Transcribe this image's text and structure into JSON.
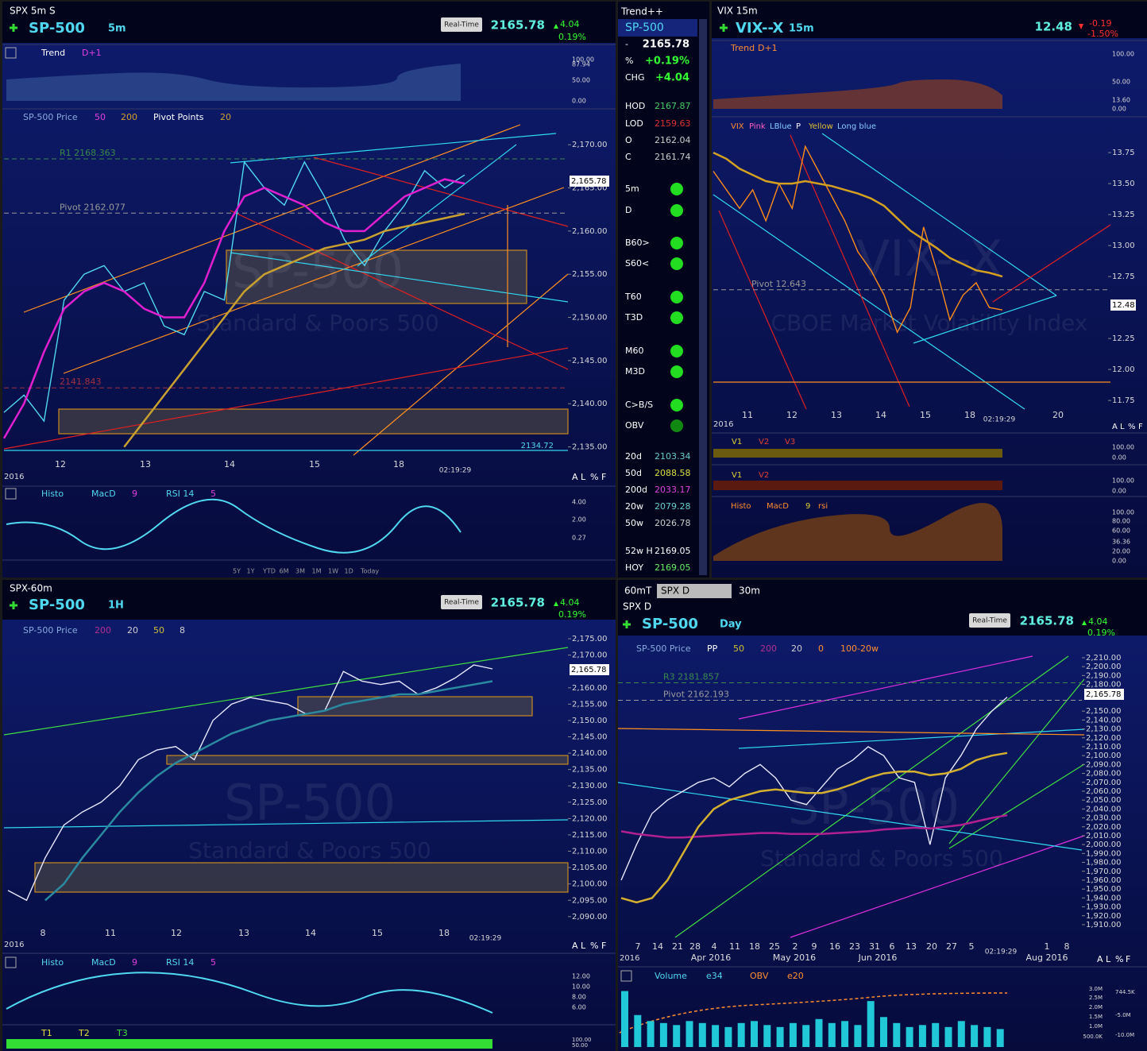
{
  "panels": {
    "tl": {
      "window_title": "SPX 5m S",
      "symbol": "SP-500",
      "interval": "5m",
      "price": "2165.78",
      "change": "4.04",
      "change_pct": "0.19%",
      "change_color": "#33ff33",
      "realtime": "Real-Time",
      "trend_labels": [
        "Trend",
        "D+1"
      ],
      "trend_ticks": [
        "100.00",
        "87.94",
        "50.00",
        "0.00"
      ],
      "overlay_labels": [
        "SP-500 Price",
        "50",
        "200",
        "Pivot Points",
        "20"
      ],
      "levels": [
        {
          "label": "R1 2168.363",
          "value": 2168.363,
          "color": "#3a8a4a"
        },
        {
          "label": "Pivot 2162.077",
          "value": 2162.077,
          "color": "#999999"
        },
        {
          "label": "2141.843",
          "value": 2141.843,
          "color": "#a03040"
        }
      ],
      "watermark": [
        "SP-500",
        "Standard & Poors 500"
      ],
      "last_box": "2,165.78",
      "low_label": "2134.72",
      "ylim": [
        2134.5,
        2172.5
      ],
      "yticks": [
        {
          "value": 2170,
          "label": "2,170.00"
        },
        {
          "value": 2165,
          "label": "2,165.00"
        },
        {
          "value": 2160,
          "label": "2,160.00"
        },
        {
          "value": 2155,
          "label": "2,155.00"
        },
        {
          "value": 2150,
          "label": "2,150.00"
        },
        {
          "value": 2145,
          "label": "2,145.00"
        },
        {
          "value": 2140,
          "label": "2,140.00"
        },
        {
          "value": 2135,
          "label": "2,135.00"
        }
      ],
      "xlabels": [
        "12",
        "13",
        "14",
        "15",
        "18"
      ],
      "time": "02:19:29",
      "year": "2016",
      "scale_opts": [
        "A",
        "L",
        "%",
        "F"
      ],
      "series": [
        {
          "color": "#4fd8f0",
          "values": [
            2139,
            2141,
            2138,
            2152,
            2155,
            2156,
            2153,
            2154,
            2149,
            2148,
            2153,
            2152,
            2168,
            2165,
            2163,
            2168,
            2164,
            2159,
            2156,
            2160,
            2163,
            2167,
            2165,
            2166.5
          ]
        },
        {
          "color": "#e020d0",
          "values": [
            2136,
            2140,
            2146,
            2151,
            2153,
            2154,
            2153,
            2151,
            2150,
            2150,
            2154,
            2160,
            2164,
            2165,
            2164,
            2163,
            2161,
            2160,
            2160,
            2162,
            2164,
            2165,
            2166,
            2165.5
          ]
        },
        {
          "color": "#c8a030",
          "values": [
            null,
            null,
            null,
            null,
            null,
            null,
            2135,
            2138,
            2141,
            2144,
            2147,
            2150,
            2153,
            2155,
            2156,
            2157,
            2158,
            2158.5,
            2159,
            2160,
            2160.5,
            2161,
            2161.5,
            2162
          ]
        }
      ],
      "lower_labels": [
        "Histo",
        "MacD",
        "9",
        "RSI 14",
        "5"
      ],
      "lower_ticks": [
        "4.00",
        "2.00",
        "0.27"
      ],
      "periods": [
        "5Y",
        "1Y",
        "YTD",
        "6M",
        "3M",
        "1M",
        "1W",
        "1D",
        "Today"
      ]
    },
    "sb": {
      "title": "Trend++",
      "symbol": "SP-500",
      "rows": [
        {
          "label": "-",
          "value": "2165.78",
          "color": "#ffffff"
        },
        {
          "label": "%",
          "value": "+0.19%",
          "color": "#33ff33"
        },
        {
          "label": "CHG",
          "value": "+4.04",
          "color": "#33ff33"
        },
        {
          "label": "HOD",
          "value": "2167.87",
          "color": "#44cc66"
        },
        {
          "label": "LOD",
          "value": "2159.63",
          "color": "#dd3333"
        },
        {
          "label": "O",
          "value": "2162.04",
          "color": "#cccccc"
        },
        {
          "label": "C",
          "value": "2161.74",
          "color": "#cccccc"
        },
        {
          "label": "20d",
          "value": "2103.34",
          "color": "#66cccc"
        },
        {
          "label": "50d",
          "value": "2088.58",
          "color": "#dddd44"
        },
        {
          "label": "200d",
          "value": "2033.17",
          "color": "#dd44dd"
        },
        {
          "label": "20w",
          "value": "2079.28",
          "color": "#66cccc"
        },
        {
          "label": "50w",
          "value": "2026.78",
          "color": "#cccccc"
        },
        {
          "label": "52w H",
          "value": "2169.05",
          "color": "#ffffff"
        },
        {
          "label": "HOY",
          "value": "2169.05",
          "color": "#66ee66"
        }
      ],
      "dots": [
        {
          "label": "5m",
          "color": "#22dd22"
        },
        {
          "label": "D",
          "color": "#22dd22"
        },
        {
          "label": "B60>",
          "color": "#22dd22"
        },
        {
          "label": "S60<",
          "color": "#22dd22"
        },
        {
          "label": "T60",
          "color": "#22dd22"
        },
        {
          "label": "T3D",
          "color": "#22dd22"
        },
        {
          "label": "M60",
          "color": "#22dd22"
        },
        {
          "label": "M3D",
          "color": "#22dd22"
        },
        {
          "label": "C>B/S",
          "color": "#22dd22"
        },
        {
          "label": "OBV",
          "color": "#118811"
        }
      ]
    },
    "tr": {
      "window_title": "VIX 15m",
      "symbol": "VIX--X",
      "interval": "15m",
      "price": "12.48",
      "change": "-0.19",
      "change_pct": "-1.50%",
      "change_color": "#ff3030",
      "trend_labels": [
        "Trend",
        "D+1"
      ],
      "trend_ticks": [
        "100.00",
        "50.00",
        "13.60",
        "0.00"
      ],
      "overlay_labels": [
        "VIX",
        "Pink",
        "LBlue",
        "P",
        "Yellow",
        "Long blue"
      ],
      "levels": [
        {
          "label": "Pivot 12.643",
          "value": 12.643,
          "color": "#999999"
        }
      ],
      "watermark": [
        "VIX--X",
        "CBOE Market Volatility Index"
      ],
      "last_box": "12.48",
      "ylim": [
        11.68,
        14.02
      ],
      "yticks": [
        {
          "value": 13.75,
          "label": "13.75"
        },
        {
          "value": 13.5,
          "label": "13.50"
        },
        {
          "value": 13.25,
          "label": "13.25"
        },
        {
          "value": 13,
          "label": "13.00"
        },
        {
          "value": 12.75,
          "label": "12.75"
        },
        {
          "value": 12.25,
          "label": "12.25"
        },
        {
          "value": 12,
          "label": "12.00"
        },
        {
          "value": 11.75,
          "label": "11.75"
        }
      ],
      "xlabels": [
        "11",
        "12",
        "13",
        "14",
        "15",
        "18",
        "20"
      ],
      "time": "02:19:29",
      "year": "2016",
      "scale_opts": [
        "A",
        "L",
        "%",
        "F"
      ],
      "series": [
        {
          "color": "#ff8c1a",
          "values": [
            13.6,
            13.45,
            13.3,
            13.45,
            13.2,
            13.5,
            13.3,
            13.8,
            13.6,
            13.4,
            13.2,
            12.95,
            12.8,
            12.6,
            12.3,
            12.5,
            13.15,
            12.8,
            12.4,
            12.6,
            12.7,
            12.5,
            12.48
          ]
        },
        {
          "color": "#d4a020",
          "values": [
            13.75,
            13.7,
            13.62,
            13.57,
            13.52,
            13.5,
            13.5,
            13.52,
            13.5,
            13.48,
            13.45,
            13.42,
            13.38,
            13.32,
            13.22,
            13.12,
            13.05,
            12.98,
            12.9,
            12.85,
            12.8,
            12.78,
            12.75
          ]
        }
      ],
      "strip1": [
        "V1",
        "V2",
        "V3"
      ],
      "strip1_ticks": [
        "100.00",
        "0.00"
      ],
      "strip2": [
        "V1",
        "V2"
      ],
      "strip2_ticks": [
        "100.00",
        "0.00"
      ],
      "lower_labels": [
        "Histo",
        "MacD",
        "9",
        "rsi"
      ],
      "lower_ticks": [
        "100.00",
        "80.00",
        "60.00",
        "36.36",
        "20.00",
        "0.00"
      ]
    },
    "bl": {
      "window_title": "SPX-60m",
      "symbol": "SP-500",
      "interval": "1H",
      "price": "2165.78",
      "change": "4.04",
      "change_pct": "0.19%",
      "change_color": "#33ff33",
      "realtime": "Real-Time",
      "overlay_labels": [
        "SP-500 Price",
        "200",
        "20",
        "50",
        "8"
      ],
      "watermark": [
        "SP-500",
        "Standard & Poors 500"
      ],
      "last_box": "2,165.78",
      "ylim": [
        2088.5,
        2177.2
      ],
      "yticks": [
        {
          "value": 2175,
          "label": "2,175.00"
        },
        {
          "value": 2170,
          "label": "2,170.00"
        },
        {
          "value": 2160,
          "label": "2,160.00"
        },
        {
          "value": 2155,
          "label": "2,155.00"
        },
        {
          "value": 2150,
          "label": "2,150.00"
        },
        {
          "value": 2145,
          "label": "2,145.00"
        },
        {
          "value": 2140,
          "label": "2,140.00"
        },
        {
          "value": 2135,
          "label": "2,135.00"
        },
        {
          "value": 2130,
          "label": "2,130.00"
        },
        {
          "value": 2125,
          "label": "2,125.00"
        },
        {
          "value": 2120,
          "label": "2,120.00"
        },
        {
          "value": 2115,
          "label": "2,115.00"
        },
        {
          "value": 2110,
          "label": "2,110.00"
        },
        {
          "value": 2105,
          "label": "2,105.00"
        },
        {
          "value": 2100,
          "label": "2,100.00"
        },
        {
          "value": 2095,
          "label": "2,095.00"
        },
        {
          "value": 2090,
          "label": "2,090.00"
        }
      ],
      "xlabels": [
        "8",
        "11",
        "12",
        "13",
        "14",
        "15",
        "18"
      ],
      "time": "02:19:29",
      "year": "2016",
      "scale_opts": [
        "A",
        "L",
        "%",
        "F"
      ],
      "series": [
        {
          "color": "#e8e8ff",
          "values": [
            2098,
            2095,
            2108,
            2118,
            2122,
            2125,
            2130,
            2138,
            2141,
            2142,
            2138,
            2150,
            2155,
            2157,
            2156,
            2155,
            2152,
            2153,
            2165,
            2162,
            2161,
            2162,
            2158,
            2160,
            2163,
            2167,
            2165.78
          ]
        },
        {
          "color": "#2a8aa0",
          "values": [
            null,
            null,
            2095,
            2100,
            2108,
            2115,
            2122,
            2128,
            2133,
            2137,
            2140,
            2143,
            2146,
            2148,
            2150,
            2151,
            2152,
            2153,
            2155,
            2156,
            2157,
            2158,
            2158,
            2159,
            2160,
            2161,
            2162
          ]
        }
      ],
      "lower_labels": [
        "Histo",
        "MacD",
        "9",
        "RSI 14",
        "5"
      ],
      "lower_ticks": [
        "12.00",
        "10.00",
        "8.00",
        "6.00"
      ],
      "t_labels": [
        "T1",
        "T2",
        "T3"
      ],
      "t_ticks": [
        "100.00",
        "50.00"
      ]
    },
    "br": {
      "tabs": [
        "60mT",
        "SPX D",
        "30m"
      ],
      "window_title": "SPX D",
      "symbol": "SP-500",
      "interval": "Day",
      "price": "2165.78",
      "change": "4.04",
      "change_pct": "0.19%",
      "change_color": "#33ff33",
      "realtime": "Real-Time",
      "overlay_labels": [
        "SP-500 Price",
        "PP",
        "50",
        "200",
        "20",
        "0",
        "100-20w"
      ],
      "levels": [
        {
          "label": "R3 2181.857",
          "value": 2181.857,
          "color": "#3a8a4a"
        },
        {
          "label": "Pivot 2162.193",
          "value": 2162.193,
          "color": "#999999"
        }
      ],
      "watermark": [
        "SP-500",
        "Standard & Poors 500"
      ],
      "last_box": "2,165.78",
      "ylim": [
        1904.6,
        2217.1
      ],
      "yticks": [
        {
          "value": 2210,
          "label": "2,210.00"
        },
        {
          "value": 2200,
          "label": "2,200.00"
        },
        {
          "value": 2190,
          "label": "2,190.00"
        },
        {
          "value": 2180,
          "label": "2,180.00"
        },
        {
          "value": 2150,
          "label": "2,150.00"
        },
        {
          "value": 2140,
          "label": "2,140.00"
        },
        {
          "value": 2130,
          "label": "2,130.00"
        },
        {
          "value": 2120,
          "label": "2,120.00"
        },
        {
          "value": 2110,
          "label": "2,110.00"
        },
        {
          "value": 2100,
          "label": "2,100.00"
        },
        {
          "value": 2090,
          "label": "2,090.00"
        },
        {
          "value": 2080,
          "label": "2,080.00"
        },
        {
          "value": 2070,
          "label": "2,070.00"
        },
        {
          "value": 2060,
          "label": "2,060.00"
        },
        {
          "value": 2050,
          "label": "2,050.00"
        },
        {
          "value": 2040,
          "label": "2,040.00"
        },
        {
          "value": 2030,
          "label": "2,030.00"
        },
        {
          "value": 2020,
          "label": "2,020.00"
        },
        {
          "value": 2010,
          "label": "2,010.00"
        },
        {
          "value": 2000,
          "label": "2,000.00"
        },
        {
          "value": 1990,
          "label": "1,990.00"
        },
        {
          "value": 1980,
          "label": "1,980.00"
        },
        {
          "value": 1970,
          "label": "1,970.00"
        },
        {
          "value": 1960,
          "label": "1,960.00"
        },
        {
          "value": 1950,
          "label": "1,950.00"
        },
        {
          "value": 1940,
          "label": "1,940.00"
        },
        {
          "value": 1930,
          "label": "1,930.00"
        },
        {
          "value": 1920,
          "label": "1,920.00"
        },
        {
          "value": 1910,
          "label": "1,910.00"
        }
      ],
      "xlabels": [
        "7",
        "14",
        "21",
        "28",
        "4",
        "11",
        "18",
        "25",
        "2",
        "9",
        "16",
        "23",
        "31",
        "6",
        "13",
        "20",
        "27",
        "5",
        "1",
        "8"
      ],
      "months": [
        "Apr 2016",
        "May 2016",
        "Jun 2016",
        "Aug 2016"
      ],
      "time": "02:19:29",
      "year": "2016",
      "scale_opts": [
        "A",
        "L",
        "%",
        "F"
      ],
      "series": [
        {
          "color": "#e8e8ff",
          "values": [
            1960,
            2000,
            2035,
            2050,
            2060,
            2070,
            2075,
            2065,
            2080,
            2090,
            2075,
            2050,
            2045,
            2065,
            2085,
            2095,
            2110,
            2100,
            2075,
            2070,
            2000,
            2075,
            2100,
            2130,
            2150,
            2165.78
          ]
        },
        {
          "color": "#b02090",
          "values": [
            2015,
            2012,
            2010,
            2008,
            2008,
            2009,
            2010,
            2011,
            2012,
            2013,
            2013,
            2012,
            2012,
            2012,
            2013,
            2014,
            2015,
            2017,
            2018,
            2019,
            2018,
            2020,
            2022,
            2026,
            2030,
            2033
          ]
        },
        {
          "color": "#d4b030",
          "values": [
            1940,
            1935,
            1940,
            1960,
            1990,
            2020,
            2040,
            2050,
            2055,
            2060,
            2062,
            2060,
            2058,
            2058,
            2062,
            2068,
            2075,
            2080,
            2082,
            2082,
            2078,
            2080,
            2085,
            2095,
            2100,
            2103
          ]
        }
      ],
      "volume_labels": [
        "Volume",
        "e34",
        "OBV",
        "e20"
      ],
      "vlim": [
        0,
        3.1
      ],
      "volume": [
        2.8,
        1.6,
        1.3,
        1.2,
        1.1,
        1.3,
        1.2,
        1.1,
        1.0,
        1.2,
        1.3,
        1.1,
        1.0,
        1.2,
        1.1,
        1.4,
        1.2,
        1.3,
        1.1,
        2.3,
        1.5,
        1.2,
        1.0,
        1.1,
        1.2,
        1.0,
        1.3,
        1.1,
        1.0,
        0.9
      ],
      "vticks": [
        "3.0M",
        "2.5M",
        "2.0M",
        "1.5M",
        "1.0M",
        "500.0K"
      ],
      "v2ticks": [
        "744.5K",
        "-5.0M",
        "-10.0M"
      ]
    }
  }
}
